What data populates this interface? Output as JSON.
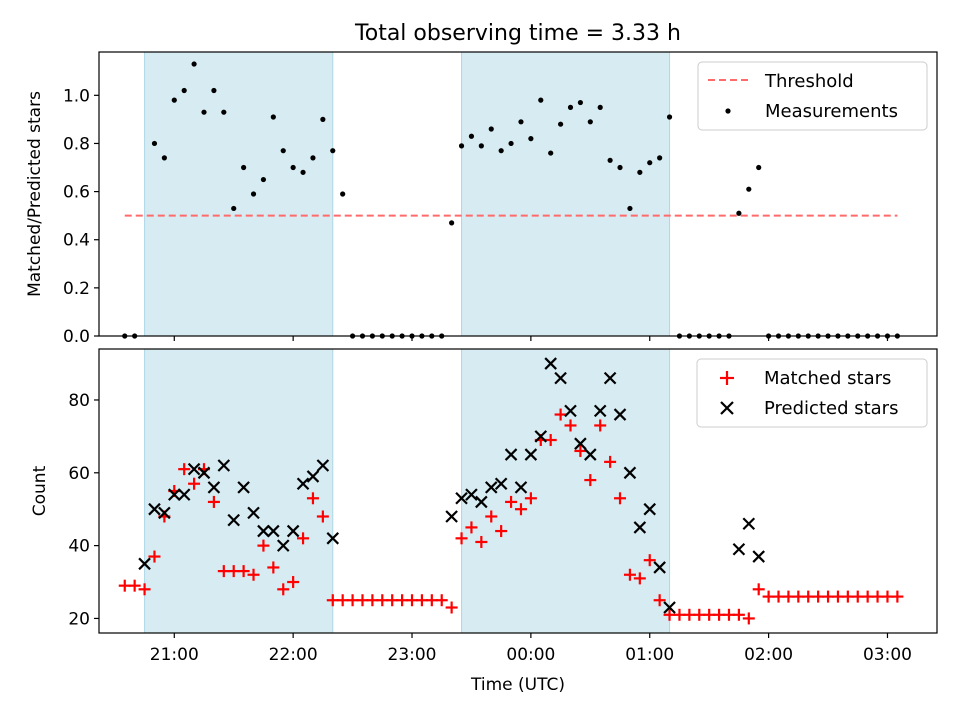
{
  "figure": {
    "title": "Total observing time = 3.33 h"
  },
  "chart_data": [
    {
      "type": "scatter",
      "title": "Total observing time = 3.33 h",
      "xlabel": "",
      "ylabel": "Matched/Predicted stars",
      "xlim": [
        "20:22",
        "03:25"
      ],
      "ylim": [
        0.0,
        1.18
      ],
      "yticks": [
        0.0,
        0.2,
        0.4,
        0.6,
        0.8,
        1.0
      ],
      "ytick_labels": [
        "0.0",
        "0.2",
        "0.4",
        "0.6",
        "0.8",
        "1.0"
      ],
      "grid": false,
      "legend": {
        "position": "top-right",
        "entries": [
          "Threshold",
          "Measurements"
        ]
      },
      "shaded_intervals": [
        [
          "20:45",
          "22:20"
        ],
        [
          "23:25",
          "01:10"
        ]
      ],
      "threshold": {
        "name": "Threshold",
        "value": 0.5,
        "x_range": [
          "20:35",
          "03:05"
        ],
        "color": "#ff6b6b",
        "style": "dashed"
      },
      "series": [
        {
          "name": "Measurements",
          "marker": "dot",
          "color": "#000000",
          "x": [
            "20:35",
            "20:40",
            "20:50",
            "20:55",
            "21:00",
            "21:05",
            "21:10",
            "21:15",
            "21:20",
            "21:25",
            "21:30",
            "21:35",
            "21:40",
            "21:45",
            "21:50",
            "21:55",
            "22:00",
            "22:05",
            "22:10",
            "22:15",
            "22:20",
            "22:25",
            "22:30",
            "22:35",
            "22:40",
            "22:45",
            "22:50",
            "22:55",
            "23:00",
            "23:05",
            "23:10",
            "23:15",
            "23:20",
            "23:25",
            "23:30",
            "23:35",
            "23:40",
            "23:45",
            "23:50",
            "23:55",
            "00:00",
            "00:05",
            "00:10",
            "00:15",
            "00:20",
            "00:25",
            "00:30",
            "00:35",
            "00:40",
            "00:45",
            "00:50",
            "00:55",
            "01:00",
            "01:05",
            "01:10",
            "01:15",
            "01:20",
            "01:25",
            "01:30",
            "01:35",
            "01:40",
            "01:45",
            "01:50",
            "01:55",
            "02:00",
            "02:05",
            "02:10",
            "02:15",
            "02:20",
            "02:25",
            "02:30",
            "02:35",
            "02:40",
            "02:45",
            "02:50",
            "02:55",
            "03:00",
            "03:05"
          ],
          "y": [
            0,
            0,
            0.8,
            0.74,
            0.98,
            1.02,
            1.13,
            0.93,
            1.02,
            0.93,
            0.53,
            0.7,
            0.59,
            0.65,
            0.91,
            0.77,
            0.7,
            0.68,
            0.74,
            0.9,
            0.77,
            0.59,
            0,
            0,
            0,
            0,
            0,
            0,
            0,
            0,
            0,
            0,
            0.47,
            0.79,
            0.83,
            0.79,
            0.86,
            0.77,
            0.8,
            0.89,
            0.82,
            0.98,
            0.76,
            0.88,
            0.95,
            0.97,
            0.89,
            0.95,
            0.73,
            0.7,
            0.53,
            0.68,
            0.72,
            0.74,
            0.91,
            0,
            0,
            0,
            0,
            0,
            0,
            0.51,
            0.61,
            0.7,
            0,
            0,
            0,
            0,
            0,
            0,
            0,
            0,
            0,
            0,
            0,
            0,
            0,
            0
          ]
        }
      ]
    },
    {
      "type": "scatter",
      "title": "",
      "xlabel": "Time (UTC)",
      "ylabel": "Count",
      "xlim": [
        "20:22",
        "03:25"
      ],
      "ylim": [
        16,
        94
      ],
      "xticks": [
        "21:00",
        "22:00",
        "23:00",
        "00:00",
        "01:00",
        "02:00",
        "03:00"
      ],
      "xtick_labels": [
        "21:00",
        "22:00",
        "23:00",
        "00:00",
        "01:00",
        "02:00",
        "03:00"
      ],
      "yticks": [
        20,
        40,
        60,
        80
      ],
      "ytick_labels": [
        "20",
        "40",
        "60",
        "80"
      ],
      "grid": false,
      "legend": {
        "position": "top-right",
        "entries": [
          "Matched stars",
          "Predicted stars"
        ]
      },
      "shaded_intervals": [
        [
          "20:45",
          "22:20"
        ],
        [
          "23:25",
          "01:10"
        ]
      ],
      "series": [
        {
          "name": "Matched stars",
          "marker": "plus",
          "color": "#ff0000",
          "x": [
            "20:35",
            "20:40",
            "20:45",
            "20:50",
            "20:55",
            "21:00",
            "21:05",
            "21:10",
            "21:15",
            "21:20",
            "21:25",
            "21:30",
            "21:35",
            "21:40",
            "21:45",
            "21:50",
            "21:55",
            "22:00",
            "22:05",
            "22:10",
            "22:15",
            "22:20",
            "22:25",
            "22:30",
            "22:35",
            "22:40",
            "22:45",
            "22:50",
            "22:55",
            "23:00",
            "23:05",
            "23:10",
            "23:15",
            "23:20",
            "23:25",
            "23:30",
            "23:35",
            "23:40",
            "23:45",
            "23:50",
            "23:55",
            "00:00",
            "00:05",
            "00:10",
            "00:15",
            "00:20",
            "00:25",
            "00:30",
            "00:35",
            "00:40",
            "00:45",
            "00:50",
            "00:55",
            "01:00",
            "01:05",
            "01:10",
            "01:15",
            "01:20",
            "01:25",
            "01:30",
            "01:35",
            "01:40",
            "01:45",
            "01:50",
            "01:55",
            "02:00",
            "02:05",
            "02:10",
            "02:15",
            "02:20",
            "02:25",
            "02:30",
            "02:35",
            "02:40",
            "02:45",
            "02:50",
            "02:55",
            "03:00",
            "03:05"
          ],
          "y": [
            29,
            29,
            28,
            37,
            48,
            55,
            61,
            57,
            61,
            52,
            33,
            33,
            33,
            32,
            40,
            34,
            28,
            30,
            42,
            53,
            48,
            25,
            25,
            25,
            25,
            25,
            25,
            25,
            25,
            25,
            25,
            25,
            25,
            23,
            42,
            45,
            41,
            48,
            44,
            52,
            50,
            53,
            69,
            69,
            76,
            73,
            66,
            58,
            73,
            63,
            53,
            32,
            31,
            36,
            25,
            21,
            21,
            21,
            21,
            21,
            21,
            21,
            21,
            20,
            28,
            26,
            26,
            26,
            26,
            26,
            26,
            26,
            26,
            26,
            26,
            26,
            26,
            26,
            26
          ]
        },
        {
          "name": "Predicted stars",
          "marker": "x",
          "color": "#000000",
          "x": [
            "20:45",
            "20:50",
            "20:55",
            "21:00",
            "21:05",
            "21:10",
            "21:15",
            "21:20",
            "21:25",
            "21:30",
            "21:35",
            "21:40",
            "21:45",
            "21:50",
            "21:55",
            "22:00",
            "22:05",
            "22:10",
            "22:15",
            "22:20",
            "23:20",
            "23:25",
            "23:30",
            "23:35",
            "23:40",
            "23:45",
            "23:50",
            "23:55",
            "00:00",
            "00:05",
            "00:10",
            "00:15",
            "00:20",
            "00:25",
            "00:30",
            "00:35",
            "00:40",
            "00:45",
            "00:50",
            "00:55",
            "01:00",
            "01:05",
            "01:10",
            "01:45",
            "01:50",
            "01:55"
          ],
          "y": [
            35,
            50,
            49,
            54,
            54,
            61,
            60,
            56,
            62,
            47,
            56,
            49,
            44,
            44,
            40,
            44,
            57,
            59,
            62,
            42,
            48,
            53,
            54,
            52,
            56,
            57,
            65,
            56,
            65,
            70,
            90,
            86,
            77,
            68,
            65,
            77,
            86,
            76,
            60,
            45,
            50,
            34,
            23,
            39,
            46,
            37
          ]
        }
      ]
    }
  ]
}
